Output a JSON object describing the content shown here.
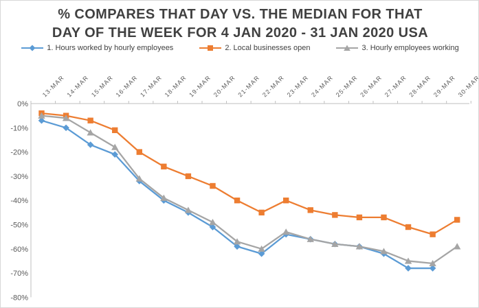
{
  "chart_data": {
    "type": "line",
    "title": "% COMPARES THAT DAY VS. THE MEDIAN FOR THAT DAY OF THE WEEK FOR 4 JAN 2020 - 31 JAN 2020 USA",
    "title_lines": [
      "% COMPARES THAT DAY VS. THE MEDIAN FOR THAT",
      "DAY OF THE WEEK FOR 4 JAN 2020 - 31 JAN 2020 USA"
    ],
    "categories": [
      "13-MAR",
      "14-MAR",
      "15-MAR",
      "16-MAR",
      "17-MAR",
      "18-MAR",
      "19-MAR",
      "20-MAR",
      "21-MAR",
      "22-MAR",
      "23-MAR",
      "24-MAR",
      "25-MAR",
      "26-MAR",
      "27-MAR",
      "28-MAR",
      "29-MAR",
      "30-MAR"
    ],
    "series": [
      {
        "name": "1. Hours worked by hourly employees",
        "color": "#5B9BD5",
        "marker": "diamond",
        "values": [
          -7,
          -10,
          -17,
          -21,
          -32,
          -40,
          -45,
          -51,
          -59,
          -62,
          -54,
          -56,
          -58,
          -59,
          -62,
          -68,
          -68,
          null
        ]
      },
      {
        "name": "2. Local businesses open",
        "color": "#ED7D31",
        "marker": "square",
        "values": [
          -4,
          -5,
          -7,
          -11,
          -20,
          -26,
          -30,
          -34,
          -40,
          -45,
          -40,
          -44,
          -46,
          -47,
          -47,
          -51,
          -54,
          -48
        ]
      },
      {
        "name": "3. Hourly employees working",
        "color": "#A5A5A5",
        "marker": "triangle",
        "values": [
          -5,
          -6,
          -12,
          -18,
          -31,
          -39,
          -44,
          -49,
          -57,
          -60,
          -53,
          -56,
          -58,
          -59,
          -61,
          -65,
          -66,
          -59
        ]
      }
    ],
    "yticks": [
      "0%",
      "-10%",
      "-20%",
      "-30%",
      "-40%",
      "-50%",
      "-60%",
      "-70%",
      "-80%"
    ],
    "ylim": [
      -80,
      0
    ],
    "xlabel": "",
    "ylabel": "",
    "grid": false,
    "legend_position": "top",
    "x_labels_position": "top-rotated-45"
  },
  "colors": {
    "title_text": "#404040",
    "axis_text": "#595959",
    "axis_line": "#BFBFBF",
    "frame_border": "#D7D7D7"
  }
}
